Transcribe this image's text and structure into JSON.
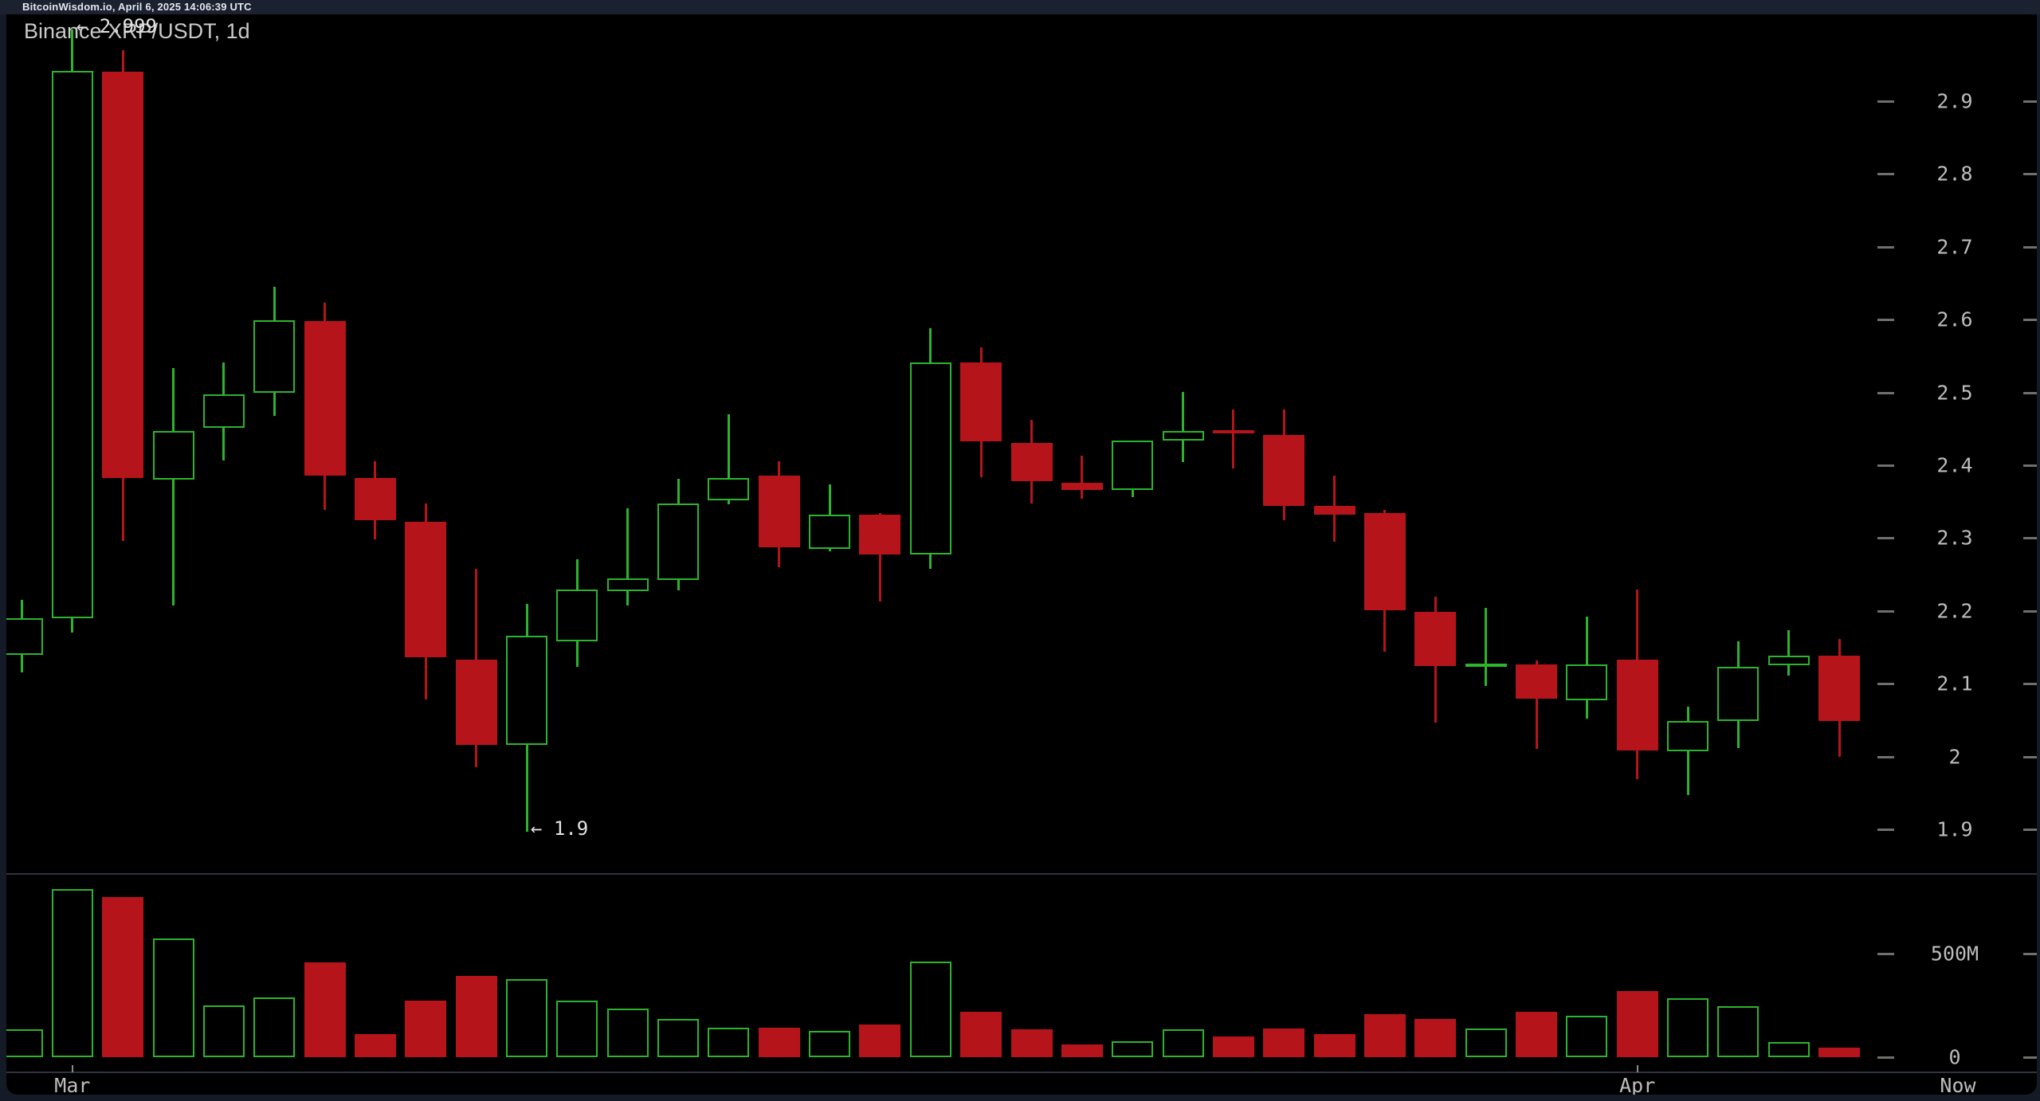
{
  "header": {
    "text": "BitcoinWisdom.io, April 6, 2025 14:06:39 UTC"
  },
  "chart_data": {
    "type": "candlestick",
    "title": "Binance XRP/USDT, 1d",
    "legend_position": "none",
    "grid": false,
    "price_axis": {
      "side": "right",
      "tick_values": [
        2.9,
        2.8,
        2.7,
        2.6,
        2.5,
        2.4,
        2.3,
        2.2,
        2.1,
        2.0,
        1.9
      ],
      "tick_labels": [
        "2.9",
        "2.8",
        "2.7",
        "2.6",
        "2.5",
        "2.4",
        "2.3",
        "2.2",
        "2.1",
        "2",
        "1.9"
      ],
      "range": [
        1.85,
        3.0
      ]
    },
    "volume_axis": {
      "side": "right",
      "tick_values_m": [
        500,
        0
      ],
      "tick_labels": [
        "500M",
        "0"
      ]
    },
    "time_axis": {
      "ticks": [
        {
          "label": "Mar",
          "candle_index": 1
        },
        {
          "label": "Apr",
          "candle_index": 32
        }
      ],
      "end_label": "Now"
    },
    "annotations": [
      {
        "text": "← 2.999",
        "candle_index": 1,
        "anchor": "high"
      },
      {
        "text": "← 1.9",
        "candle_index": 10,
        "anchor": "low"
      }
    ],
    "colors": {
      "up": "#2db32d",
      "down": "#b5151a",
      "background": "#000000",
      "page": "#141a26",
      "header_background": "#1b212e",
      "label_text": "#bdbdbd"
    },
    "candles": [
      {
        "o": 2.14,
        "h": 2.215,
        "l": 2.115,
        "c": 2.19,
        "v_m": 135
      },
      {
        "o": 2.19,
        "h": 2.999,
        "l": 2.17,
        "c": 2.942,
        "v_m": 812
      },
      {
        "o": 2.94,
        "h": 2.97,
        "l": 2.296,
        "c": 2.382,
        "v_m": 773
      },
      {
        "o": 2.38,
        "h": 2.533,
        "l": 2.207,
        "c": 2.447,
        "v_m": 573
      },
      {
        "o": 2.451,
        "h": 2.541,
        "l": 2.407,
        "c": 2.497,
        "v_m": 250
      },
      {
        "o": 2.5,
        "h": 2.645,
        "l": 2.468,
        "c": 2.599,
        "v_m": 288
      },
      {
        "o": 2.598,
        "h": 2.623,
        "l": 2.339,
        "c": 2.386,
        "v_m": 458
      },
      {
        "o": 2.382,
        "h": 2.405,
        "l": 2.298,
        "c": 2.324,
        "v_m": 112
      },
      {
        "o": 2.322,
        "h": 2.347,
        "l": 2.078,
        "c": 2.136,
        "v_m": 273
      },
      {
        "o": 2.133,
        "h": 2.258,
        "l": 1.985,
        "c": 2.016,
        "v_m": 392
      },
      {
        "o": 2.016,
        "h": 2.21,
        "l": 1.897,
        "c": 2.166,
        "v_m": 377
      },
      {
        "o": 2.158,
        "h": 2.271,
        "l": 2.123,
        "c": 2.229,
        "v_m": 273
      },
      {
        "o": 2.227,
        "h": 2.341,
        "l": 2.207,
        "c": 2.245,
        "v_m": 235
      },
      {
        "o": 2.242,
        "h": 2.381,
        "l": 2.228,
        "c": 2.347,
        "v_m": 185
      },
      {
        "o": 2.352,
        "h": 2.47,
        "l": 2.346,
        "c": 2.383,
        "v_m": 142
      },
      {
        "o": 2.386,
        "h": 2.406,
        "l": 2.26,
        "c": 2.287,
        "v_m": 142
      },
      {
        "o": 2.285,
        "h": 2.374,
        "l": 2.282,
        "c": 2.332,
        "v_m": 127
      },
      {
        "o": 2.332,
        "h": 2.334,
        "l": 2.213,
        "c": 2.277,
        "v_m": 158
      },
      {
        "o": 2.277,
        "h": 2.588,
        "l": 2.258,
        "c": 2.541,
        "v_m": 462
      },
      {
        "o": 2.541,
        "h": 2.562,
        "l": 2.384,
        "c": 2.433,
        "v_m": 219
      },
      {
        "o": 2.431,
        "h": 2.462,
        "l": 2.348,
        "c": 2.378,
        "v_m": 135
      },
      {
        "o": 2.376,
        "h": 2.413,
        "l": 2.354,
        "c": 2.366,
        "v_m": 62
      },
      {
        "o": 2.366,
        "h": 2.434,
        "l": 2.356,
        "c": 2.434,
        "v_m": 77
      },
      {
        "o": 2.434,
        "h": 2.501,
        "l": 2.404,
        "c": 2.447,
        "v_m": 135
      },
      {
        "o": 2.448,
        "h": 2.477,
        "l": 2.396,
        "c": 2.444,
        "v_m": 100
      },
      {
        "o": 2.442,
        "h": 2.477,
        "l": 2.324,
        "c": 2.344,
        "v_m": 139
      },
      {
        "o": 2.344,
        "h": 2.386,
        "l": 2.295,
        "c": 2.332,
        "v_m": 112
      },
      {
        "o": 2.334,
        "h": 2.339,
        "l": 2.144,
        "c": 2.201,
        "v_m": 208
      },
      {
        "o": 2.199,
        "h": 2.219,
        "l": 2.047,
        "c": 2.124,
        "v_m": 185
      },
      {
        "o": 2.124,
        "h": 2.204,
        "l": 2.097,
        "c": 2.128,
        "v_m": 139
      },
      {
        "o": 2.126,
        "h": 2.132,
        "l": 2.011,
        "c": 2.079,
        "v_m": 219
      },
      {
        "o": 2.077,
        "h": 2.192,
        "l": 2.052,
        "c": 2.126,
        "v_m": 200
      },
      {
        "o": 2.133,
        "h": 2.229,
        "l": 1.969,
        "c": 2.008,
        "v_m": 318
      },
      {
        "o": 2.007,
        "h": 2.068,
        "l": 1.947,
        "c": 2.049,
        "v_m": 285
      },
      {
        "o": 2.049,
        "h": 2.158,
        "l": 2.012,
        "c": 2.123,
        "v_m": 246
      },
      {
        "o": 2.125,
        "h": 2.173,
        "l": 2.111,
        "c": 2.139,
        "v_m": 73
      },
      {
        "o": 2.139,
        "h": 2.161,
        "l": 2.0,
        "c": 2.049,
        "v_m": 46
      }
    ]
  }
}
